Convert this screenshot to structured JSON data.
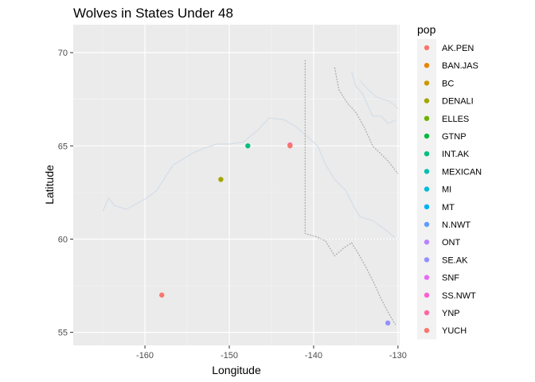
{
  "chart_data": {
    "type": "scatter",
    "title": "Wolves in States Under 48",
    "xlabel": "Longitude",
    "ylabel": "Latitude",
    "xlim": [
      -168.5,
      -129.8
    ],
    "ylim": [
      54.3,
      71.5
    ],
    "x_ticks": [
      -160,
      -150,
      -140,
      -130
    ],
    "x_tick_labels": [
      "-160",
      "-150",
      "-140",
      "-130"
    ],
    "y_ticks": [
      55,
      60,
      65,
      70
    ],
    "y_tick_labels": [
      "55",
      "60",
      "65",
      "70"
    ],
    "grid": true,
    "background": "#ebebeb",
    "map_line_color": "#d3dde8",
    "border_line_color": "#b0b0b0",
    "legend": {
      "title": "pop",
      "placement": "right"
    },
    "series": [
      {
        "name": "AK.PEN",
        "color": "#F8766D",
        "points": [
          [
            -158.0,
            57.0
          ]
        ]
      },
      {
        "name": "BAN.JAS",
        "color": "#E58700",
        "points": []
      },
      {
        "name": "BC",
        "color": "#C99800",
        "points": []
      },
      {
        "name": "DENALI",
        "color": "#A3A500",
        "points": [
          [
            -151.0,
            63.2
          ]
        ]
      },
      {
        "name": "ELLES",
        "color": "#6BB100",
        "points": []
      },
      {
        "name": "GTNP",
        "color": "#00BA38",
        "points": []
      },
      {
        "name": "INT.AK",
        "color": "#00BF7D",
        "points": [
          [
            -147.8,
            65.0
          ]
        ]
      },
      {
        "name": "MEXICAN",
        "color": "#00C0AF",
        "points": []
      },
      {
        "name": "MI",
        "color": "#00BCD8",
        "points": []
      },
      {
        "name": "MT",
        "color": "#00B0F6",
        "points": []
      },
      {
        "name": "N.NWT",
        "color": "#619CFF",
        "points": []
      },
      {
        "name": "ONT",
        "color": "#B983FF",
        "points": []
      },
      {
        "name": "SE.AK",
        "color": "#9590FF",
        "points": [
          [
            -131.2,
            55.5
          ]
        ]
      },
      {
        "name": "SNF",
        "color": "#E76BF3",
        "points": []
      },
      {
        "name": "SS.NWT",
        "color": "#FD61D1",
        "points": []
      },
      {
        "name": "YNP",
        "color": "#FF67A4",
        "points": [
          [
            -142.8,
            65.05
          ]
        ]
      },
      {
        "name": "YUCH",
        "color": "#F8766D",
        "points": [
          [
            -142.8,
            65.0
          ]
        ]
      }
    ]
  }
}
